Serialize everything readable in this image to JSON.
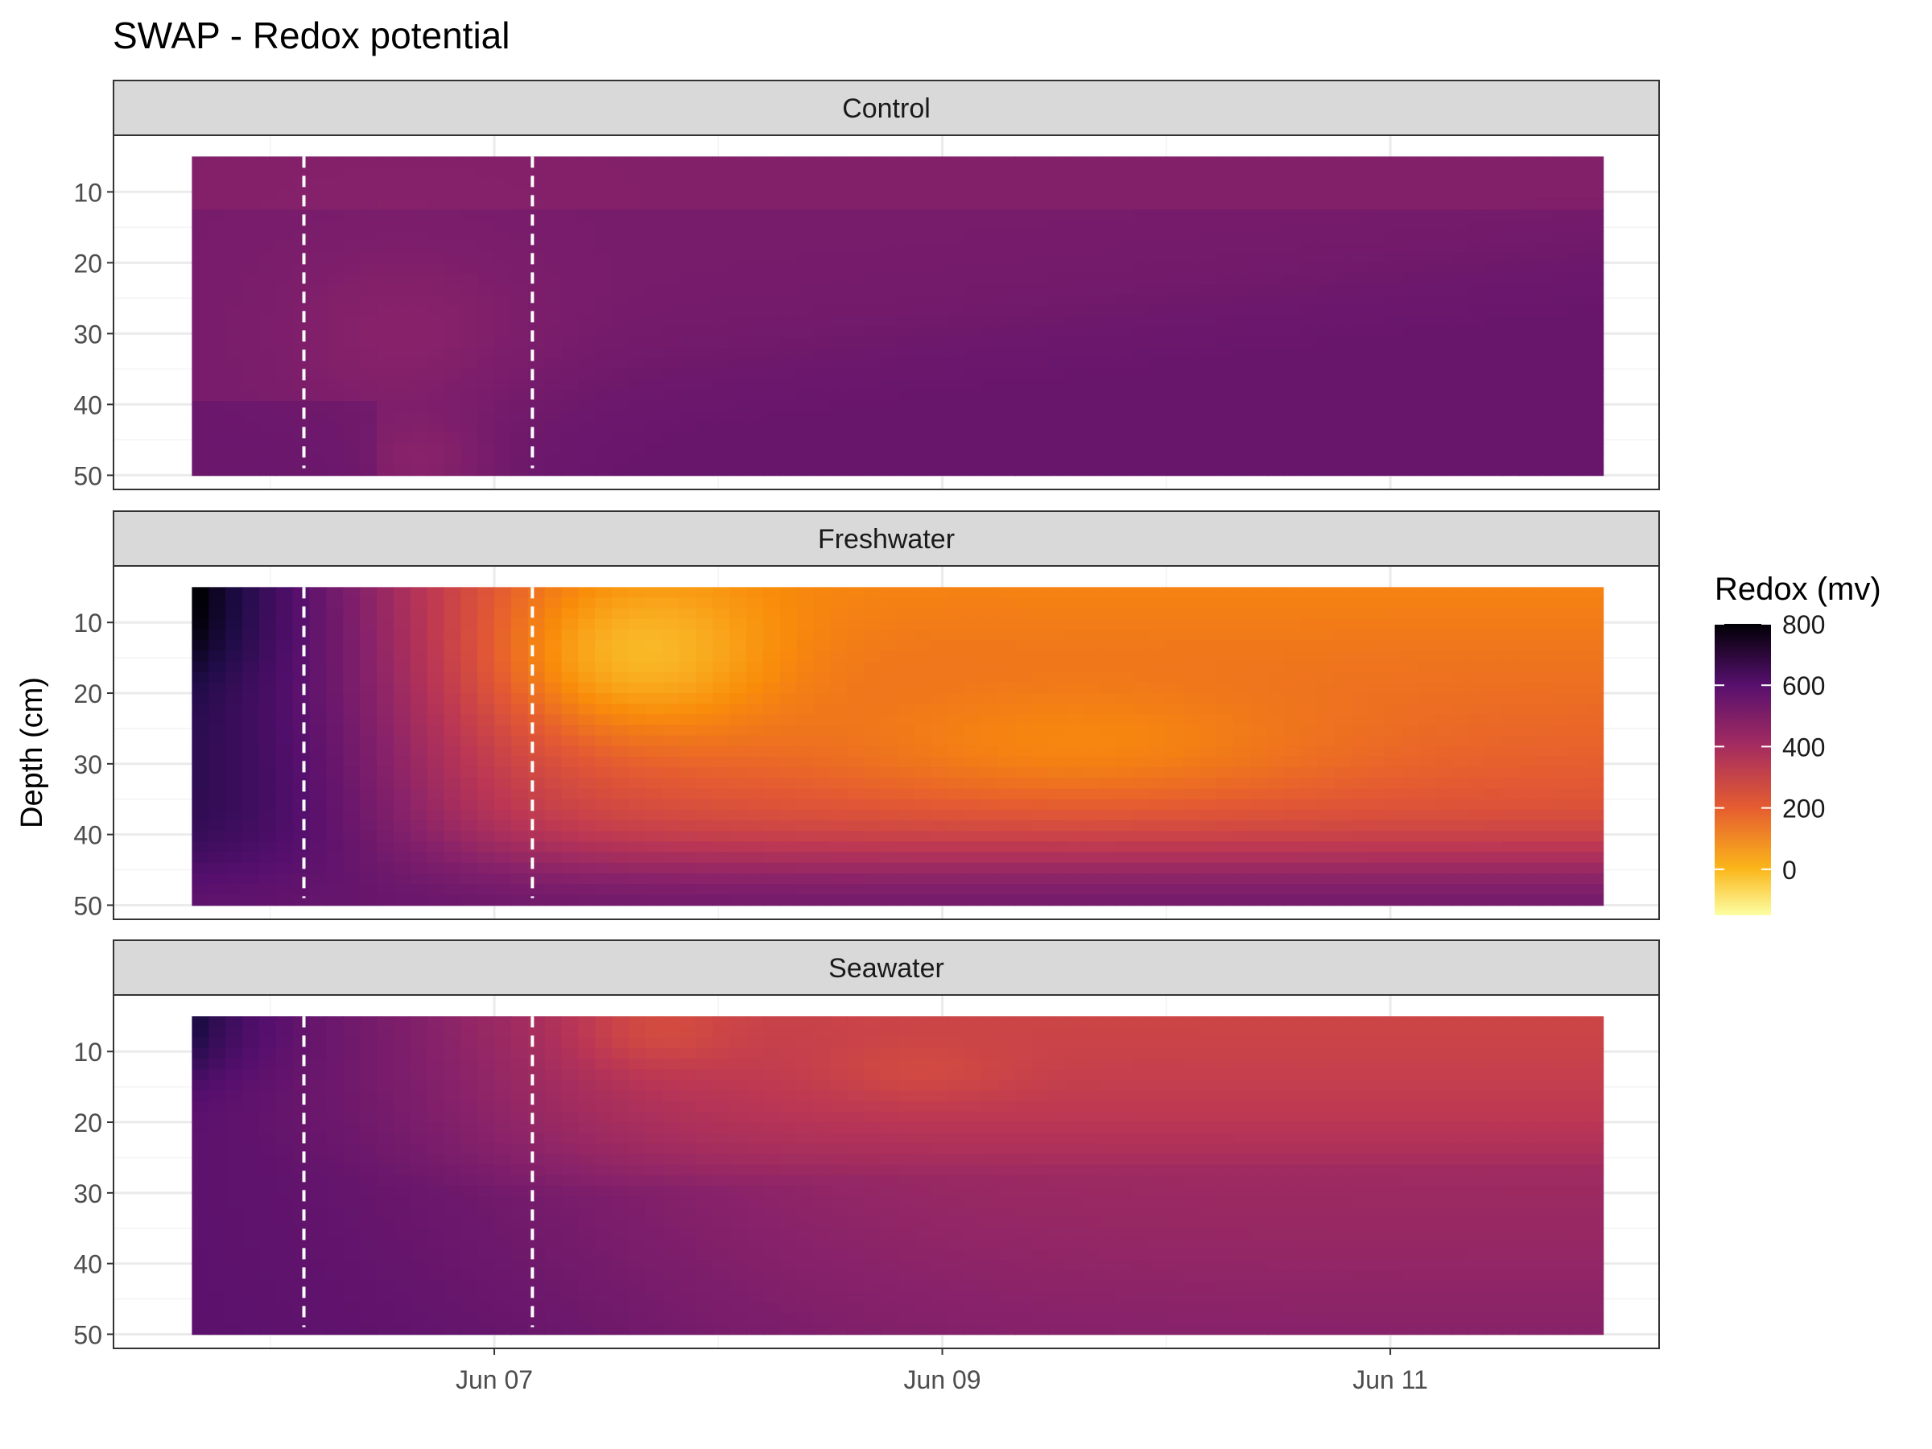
{
  "chart_data": {
    "type": "heatmap",
    "title": "SWAP - Redox potential",
    "ylabel": "Depth (cm)",
    "xlabel": "",
    "x_ticks": [
      "Jun 07",
      "Jun 09",
      "Jun 11"
    ],
    "x_tick_positions_days": [
      7,
      9,
      11
    ],
    "x_range_days": [
      5.3,
      12.2
    ],
    "data_x_range_days": [
      5.65,
      11.95
    ],
    "y_ticks": [
      10,
      20,
      30,
      40,
      50
    ],
    "ylim": [
      2,
      52
    ],
    "y_reversed": true,
    "data_y_range": [
      5,
      50
    ],
    "grid": true,
    "event_lines_days": [
      6.15,
      7.17
    ],
    "legend": {
      "title": "Redox (mv)",
      "position": "right",
      "ticks": [
        800,
        600,
        400,
        200,
        0
      ],
      "range": [
        -150,
        800
      ],
      "palette": "inferno"
    },
    "panels": [
      {
        "name": "Control",
        "description_values": "approx. 450-520 mV throughout; surface ~470, deep bottom after Jun 08 ~520",
        "surface_mv": 480,
        "deep_mv": 510
      },
      {
        "name": "Freshwater",
        "description_values": "starts ~800 mV at surface Jun 05-06, drops to ~0-50 mV at 10-25 cm on Jun 07-08, ~100 mV mid-depth later, ~500 mV at 50 cm",
        "surface_mv": 250,
        "deep_mv": 520
      },
      {
        "name": "Seawater",
        "description_values": "starts ~800 mV at surface, drops to ~250 mV in top 20 cm by Jun 08-11, ~350 mV below 30 cm",
        "surface_mv": 260,
        "deep_mv": 380
      }
    ]
  }
}
